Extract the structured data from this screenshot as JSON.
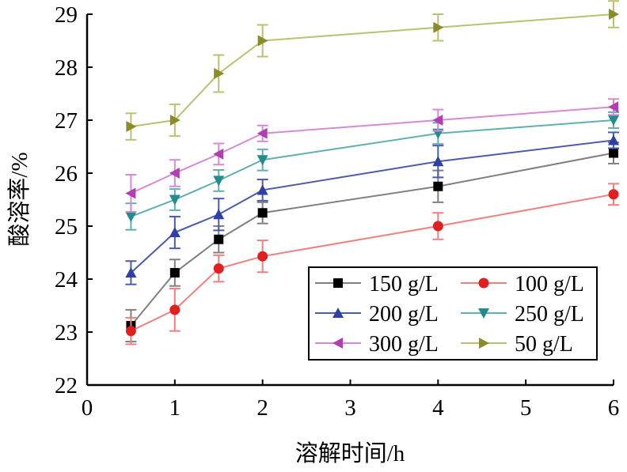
{
  "chart_data": {
    "type": "line",
    "xlabel": "溶解时间/h",
    "ylabel": "酸溶率/%",
    "xlim": [
      0,
      6
    ],
    "ylim": [
      22,
      29
    ],
    "xticks": [
      0,
      1,
      2,
      3,
      4,
      5,
      6
    ],
    "yticks": [
      22,
      23,
      24,
      25,
      26,
      27,
      28,
      29
    ],
    "grid": false,
    "legend_position": "bottom-right",
    "x": [
      0.5,
      1,
      1.5,
      2,
      4,
      6
    ],
    "series": [
      {
        "name": "150 g/L",
        "color": "#808080",
        "marker": "square",
        "marker_color": "#000000",
        "values": [
          23.12,
          24.12,
          24.75,
          25.25,
          25.75,
          26.38
        ],
        "errors": [
          0.3,
          0.25,
          0.25,
          0.2,
          0.3,
          0.2
        ]
      },
      {
        "name": "100 g/L",
        "color": "#f08080",
        "marker": "circle",
        "marker_color": "#e02020",
        "values": [
          23.02,
          23.42,
          24.2,
          24.43,
          25.0,
          25.6
        ],
        "errors": [
          0.25,
          0.4,
          0.25,
          0.3,
          0.25,
          0.2
        ]
      },
      {
        "name": "200 g/L",
        "color": "#4a5bb0",
        "marker": "triangle-up",
        "marker_color": "#2e3fa6",
        "values": [
          24.12,
          24.88,
          25.22,
          25.68,
          26.22,
          26.62
        ],
        "errors": [
          0.22,
          0.3,
          0.3,
          0.2,
          0.3,
          0.15
        ]
      },
      {
        "name": "250 g/L",
        "color": "#5fb0b0",
        "marker": "triangle-down",
        "marker_color": "#238c8c",
        "values": [
          25.18,
          25.5,
          25.86,
          26.25,
          26.75,
          27.0
        ],
        "errors": [
          0.25,
          0.2,
          0.2,
          0.2,
          0.2,
          0.15
        ]
      },
      {
        "name": "300 g/L",
        "color": "#d58ad5",
        "marker": "triangle-left",
        "marker_color": "#b040b0",
        "values": [
          25.62,
          26.0,
          26.36,
          26.75,
          27.0,
          27.25
        ],
        "errors": [
          0.35,
          0.25,
          0.2,
          0.15,
          0.2,
          0.15
        ]
      },
      {
        "name": "50 g/L",
        "color": "#bcc070",
        "marker": "triangle-right",
        "marker_color": "#8a8c2a",
        "values": [
          26.88,
          27.0,
          27.88,
          28.5,
          28.75,
          29.0
        ],
        "errors": [
          0.25,
          0.3,
          0.35,
          0.3,
          0.25,
          0.25
        ]
      }
    ]
  }
}
